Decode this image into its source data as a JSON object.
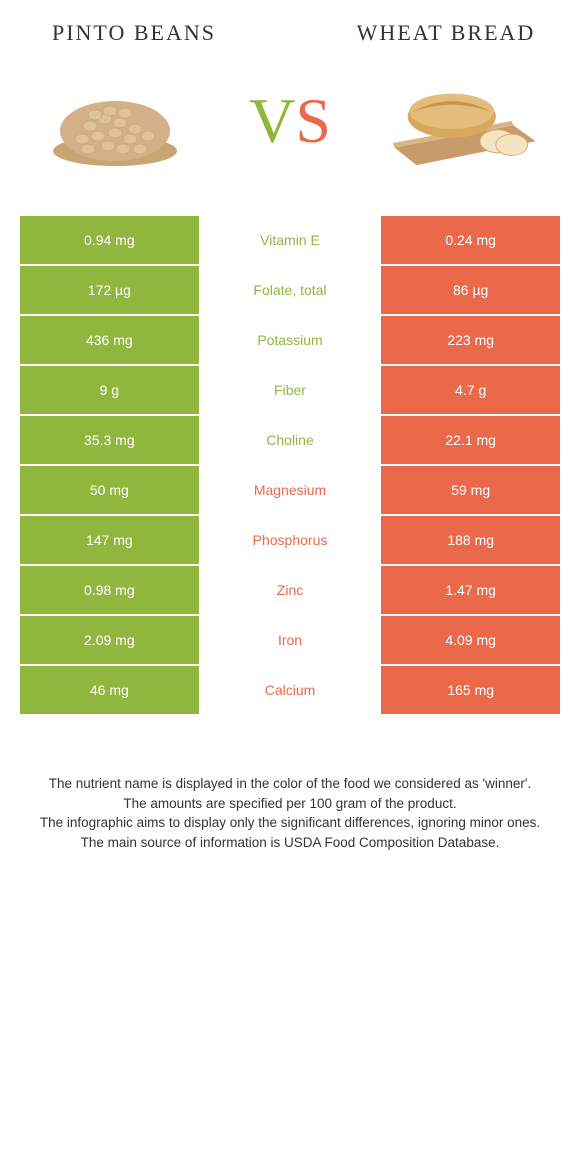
{
  "colors": {
    "green": "#8fb73e",
    "orange": "#e9694a",
    "white": "#ffffff",
    "text": "#333333"
  },
  "foods": {
    "left": {
      "title": "PINTO BEANS",
      "color": "#8fb73e"
    },
    "right": {
      "title": "WHEAT BREAD",
      "color": "#e9694a"
    }
  },
  "vs": {
    "v": "V",
    "s": "S"
  },
  "rows": [
    {
      "left": "0.94 mg",
      "label": "Vitamin E",
      "right": "0.24 mg",
      "label_color": "#8fb73e"
    },
    {
      "left": "172 µg",
      "label": "Folate, total",
      "right": "86 µg",
      "label_color": "#8fb73e"
    },
    {
      "left": "436 mg",
      "label": "Potassium",
      "right": "223 mg",
      "label_color": "#8fb73e"
    },
    {
      "left": "9 g",
      "label": "Fiber",
      "right": "4.7 g",
      "label_color": "#8fb73e"
    },
    {
      "left": "35.3 mg",
      "label": "Choline",
      "right": "22.1 mg",
      "label_color": "#8fb73e"
    },
    {
      "left": "50 mg",
      "label": "Magnesium",
      "right": "59 mg",
      "label_color": "#e9694a"
    },
    {
      "left": "147 mg",
      "label": "Phosphorus",
      "right": "188 mg",
      "label_color": "#e9694a"
    },
    {
      "left": "0.98 mg",
      "label": "Zinc",
      "right": "1.47 mg",
      "label_color": "#e9694a"
    },
    {
      "left": "2.09 mg",
      "label": "Iron",
      "right": "4.09 mg",
      "label_color": "#e9694a"
    },
    {
      "left": "46 mg",
      "label": "Calcium",
      "right": "165 mg",
      "label_color": "#e9694a"
    }
  ],
  "footnotes": [
    "The nutrient name is displayed in the color of the food we considered as 'winner'.",
    "The amounts are specified per 100 gram of the product.",
    "The infographic aims to display only the significant differences, ignoring minor ones.",
    "The main source of information is USDA Food Composition Database."
  ]
}
